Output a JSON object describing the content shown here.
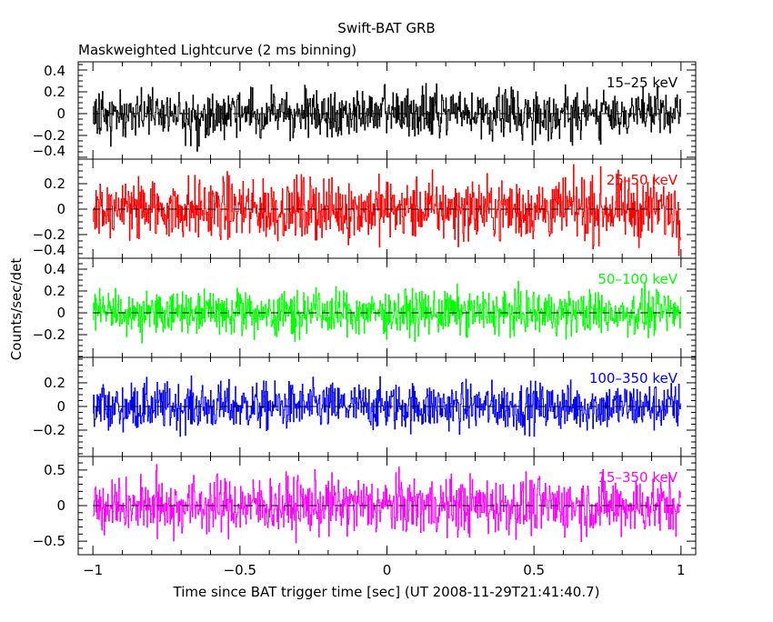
{
  "chart_data": {
    "type": "line",
    "title": "Swift-BAT GRB",
    "subtitle": "Maskweighted Lightcurve (2 ms binning)",
    "xlabel": "Time since BAT trigger time [sec] (UT 2008-11-29T21:41:40.7)",
    "ylabel": "Counts/sec/det",
    "xlim": [
      -1.05,
      1.05
    ],
    "x_ticks": [
      -1,
      -0.5,
      0,
      0.5,
      1
    ],
    "x_tick_labels": [
      "−1",
      "−0.5",
      "0",
      "0.5",
      "1"
    ],
    "bin_width_sec": 0.002,
    "grid": false,
    "panels": [
      {
        "name": "15–25 keV",
        "color": "#000000",
        "ylim": [
          -0.417,
          0.475
        ],
        "y_ticks": [
          -0.4,
          -0.2,
          0,
          0.2,
          0.4
        ],
        "y_tick_labels": [
          "−0.4",
          "−0.2",
          "0",
          "0.2",
          "0.4"
        ],
        "noise_rms": 0.11,
        "mean": 0.0,
        "seed": 11
      },
      {
        "name": "25–50 keV",
        "color": "#ff0000",
        "ylim": [
          -0.386,
          0.393
        ],
        "y_ticks": [
          -0.4,
          -0.2,
          0,
          0.2
        ],
        "y_tick_labels": [
          "−0.4",
          "−0.2",
          "0",
          "0.2"
        ],
        "noise_rms": 0.12,
        "mean": 0.0,
        "seed": 23
      },
      {
        "name": "50–100 keV",
        "color": "#00ff00",
        "ylim": [
          -0.408,
          0.5
        ],
        "y_ticks": [
          -0.2,
          0,
          0.2,
          0.4
        ],
        "y_tick_labels": [
          "−0.2",
          "0",
          "0.2",
          "0.4"
        ],
        "noise_rms": 0.1,
        "mean": 0.0,
        "seed": 37
      },
      {
        "name": "100–350 keV",
        "color": "#0000ff",
        "ylim": [
          -0.423,
          0.415
        ],
        "y_ticks": [
          -0.2,
          0,
          0.2
        ],
        "y_tick_labels": [
          "−0.2",
          "0",
          "0.2"
        ],
        "noise_rms": 0.1,
        "mean": 0.0,
        "seed": 41
      },
      {
        "name": "15–350 keV",
        "color": "#ff00ff",
        "ylim": [
          -0.69,
          0.69
        ],
        "y_ticks": [
          -0.5,
          0,
          0.5
        ],
        "y_tick_labels": [
          "−0.5",
          "0",
          "0.5"
        ],
        "noise_rms": 0.2,
        "mean": 0.0,
        "seed": 53
      }
    ]
  }
}
